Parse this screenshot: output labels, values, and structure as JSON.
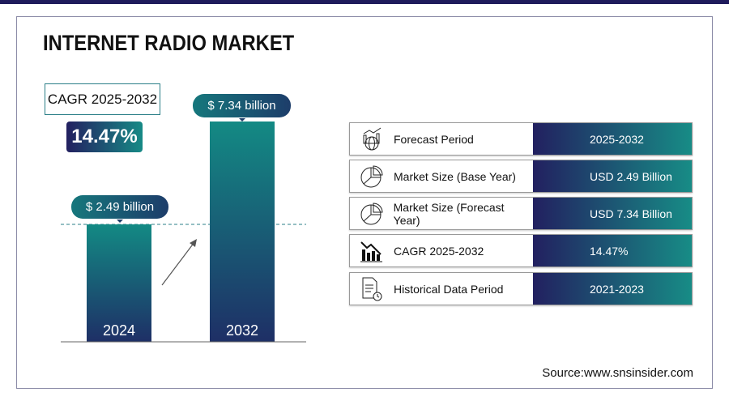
{
  "title": "INTERNET RADIO MARKET",
  "cagr": {
    "label": "CAGR 2025-2032",
    "value": "14.47%"
  },
  "chart_data": {
    "type": "bar",
    "categories": [
      "2024",
      "2032"
    ],
    "values": [
      2.49,
      7.34
    ],
    "data_labels": [
      "$ 2.49 billion",
      "$ 7.34 billion"
    ],
    "colors": {
      "bar_top": "#138a84",
      "bar_bottom": "#1e2f66"
    }
  },
  "table": [
    {
      "icon": "chart-globe-icon",
      "label": "Forecast Period",
      "value": "2025-2032"
    },
    {
      "icon": "pie-chart-icon",
      "label": "Market Size (Base Year)",
      "value": "USD 2.49 Billion"
    },
    {
      "icon": "pie-chart-icon",
      "label": "Market Size (Forecast Year)",
      "value": "USD 7.34 Billion"
    },
    {
      "icon": "bar-chart-decline-icon",
      "label": "CAGR 2025-2032",
      "value": "14.47%"
    },
    {
      "icon": "document-clock-icon",
      "label": "Historical Data Period",
      "value": "2021-2023"
    }
  ],
  "source": "Source:www.snsinsider.com"
}
